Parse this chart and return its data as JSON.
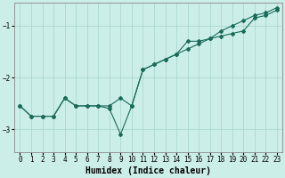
{
  "title": "",
  "xlabel": "Humidex (Indice chaleur)",
  "bg_color": "#cceee8",
  "line_color": "#1a6b5a",
  "grid_color": "#aad8d0",
  "xlim": [
    -0.5,
    23.5
  ],
  "ylim": [
    -3.45,
    -0.55
  ],
  "yticks": [
    -3,
    -2,
    -1
  ],
  "xticks": [
    0,
    1,
    2,
    3,
    4,
    5,
    6,
    7,
    8,
    9,
    10,
    11,
    12,
    13,
    14,
    15,
    16,
    17,
    18,
    19,
    20,
    21,
    22,
    23
  ],
  "line1_x": [
    0,
    1,
    2,
    3,
    4,
    5,
    6,
    7,
    8,
    9,
    10,
    11,
    12,
    13,
    14,
    15,
    16,
    17,
    18,
    19,
    20,
    21,
    22,
    23
  ],
  "line1_y": [
    -2.55,
    -2.75,
    -2.75,
    -2.75,
    -2.4,
    -2.55,
    -2.55,
    -2.55,
    -2.55,
    -2.4,
    -2.55,
    -1.85,
    -1.75,
    -1.65,
    -1.55,
    -1.45,
    -1.35,
    -1.25,
    -1.2,
    -1.15,
    -1.1,
    -0.85,
    -0.8,
    -0.7
  ],
  "line2_x": [
    0,
    1,
    2,
    3,
    4,
    5,
    6,
    7,
    8,
    9,
    10,
    11,
    12,
    13,
    14,
    15,
    16,
    17,
    18,
    19,
    20,
    21,
    22,
    23
  ],
  "line2_y": [
    -2.55,
    -2.75,
    -2.75,
    -2.75,
    -2.4,
    -2.55,
    -2.55,
    -2.55,
    -2.6,
    -3.1,
    -2.55,
    -1.85,
    -1.75,
    -1.65,
    -1.55,
    -1.3,
    -1.3,
    -1.25,
    -1.1,
    -1.0,
    -0.9,
    -0.8,
    -0.75,
    -0.65
  ],
  "marker": "D",
  "markersize": 2.0,
  "linewidth": 0.8,
  "xlabel_fontsize": 7,
  "tick_fontsize": 5.5
}
